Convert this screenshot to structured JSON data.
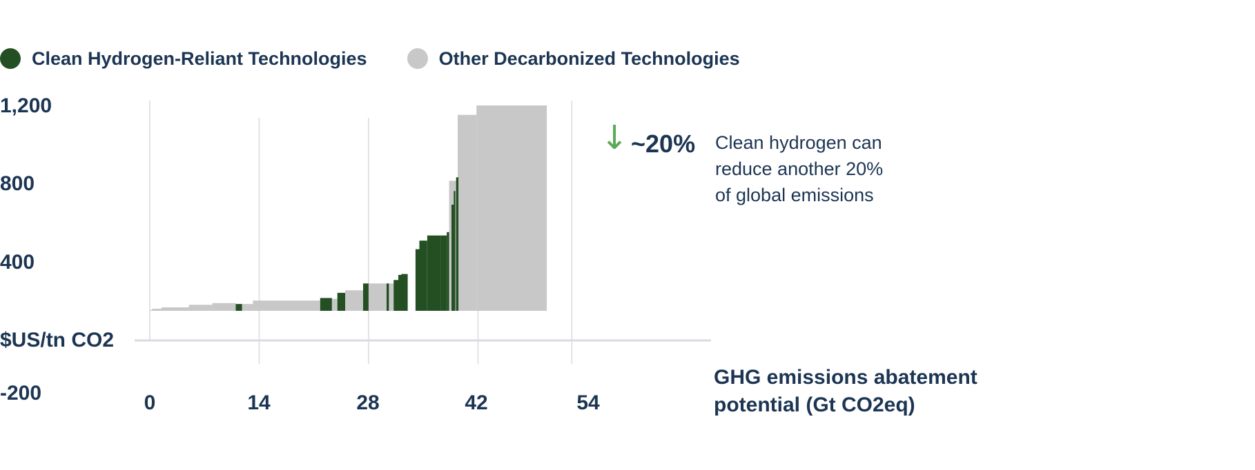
{
  "chart_data": {
    "type": "bar",
    "subtype": "marginal-abatement-cost-curve",
    "legend": [
      {
        "name": "Clean Hydrogen-Reliant Technologies",
        "color": "#234f23"
      },
      {
        "name": "Other Decarbonized Technologies",
        "color": "#c8c8c8"
      }
    ],
    "legend_position": "top-left",
    "ylabel": "$US/tn CO2",
    "xlabel_lines": [
      "GHG emissions abatement",
      "potential (Gt CO2eq)"
    ],
    "y_ticks": [
      "1,200",
      "800",
      "400",
      "-200"
    ],
    "x_ticks": [
      "0",
      "14",
      "28",
      "42",
      "54"
    ],
    "xlim": [
      0,
      72
    ],
    "ylim": [
      -200,
      1200
    ],
    "grid": true,
    "series": [
      {
        "name": "Other Decarbonized Technologies",
        "segments": [
          {
            "x0": 0.0,
            "x1": 0.3,
            "y": 5
          },
          {
            "x0": 0.3,
            "x1": 1.5,
            "y": 12
          },
          {
            "x0": 1.5,
            "x1": 5.0,
            "y": 20
          },
          {
            "x0": 5.0,
            "x1": 8.0,
            "y": 35
          },
          {
            "x0": 8.0,
            "x1": 11.0,
            "y": 45
          },
          {
            "x0": 11.8,
            "x1": 13.2,
            "y": 40
          },
          {
            "x0": 13.2,
            "x1": 21.8,
            "y": 60
          },
          {
            "x0": 23.3,
            "x1": 24.0,
            "y": 70
          },
          {
            "x0": 25.0,
            "x1": 27.3,
            "y": 120
          },
          {
            "x0": 28.0,
            "x1": 30.3,
            "y": 160
          },
          {
            "x0": 30.6,
            "x1": 31.2,
            "y": 160
          },
          {
            "x0": 34.8,
            "x1": 35.1,
            "y": 410
          },
          {
            "x0": 38.3,
            "x1": 39.4,
            "y": 760
          },
          {
            "x0": 39.4,
            "x1": 41.8,
            "y": 1145
          },
          {
            "x0": 41.8,
            "x1": 50.8,
            "y": 1200
          }
        ]
      },
      {
        "name": "Clean Hydrogen-Reliant Technologies",
        "segments": [
          {
            "x0": 11.0,
            "x1": 11.8,
            "y": 40
          },
          {
            "x0": 21.8,
            "x1": 23.3,
            "y": 75
          },
          {
            "x0": 24.0,
            "x1": 25.0,
            "y": 105
          },
          {
            "x0": 27.3,
            "x1": 28.0,
            "y": 160
          },
          {
            "x0": 30.3,
            "x1": 30.6,
            "y": 160
          },
          {
            "x0": 31.2,
            "x1": 31.8,
            "y": 180
          },
          {
            "x0": 31.8,
            "x1": 32.2,
            "y": 210
          },
          {
            "x0": 32.2,
            "x1": 33.0,
            "y": 215
          },
          {
            "x0": 34.0,
            "x1": 34.5,
            "y": 360
          },
          {
            "x0": 34.5,
            "x1": 35.5,
            "y": 410
          },
          {
            "x0": 35.5,
            "x1": 37.2,
            "y": 440
          },
          {
            "x0": 37.2,
            "x1": 38.0,
            "y": 440
          },
          {
            "x0": 38.0,
            "x1": 38.3,
            "y": 460
          },
          {
            "x0": 38.6,
            "x1": 38.9,
            "y": 620
          },
          {
            "x0": 38.9,
            "x1": 39.1,
            "y": 700
          },
          {
            "x0": 39.2,
            "x1": 39.5,
            "y": 780
          }
        ]
      }
    ]
  },
  "annotation": {
    "arrow": "↓",
    "value": "~20%",
    "text_lines": [
      "Clean hydrogen can",
      "reduce another 20%",
      "of global emissions"
    ],
    "arrow_color": "#5aa85a"
  }
}
